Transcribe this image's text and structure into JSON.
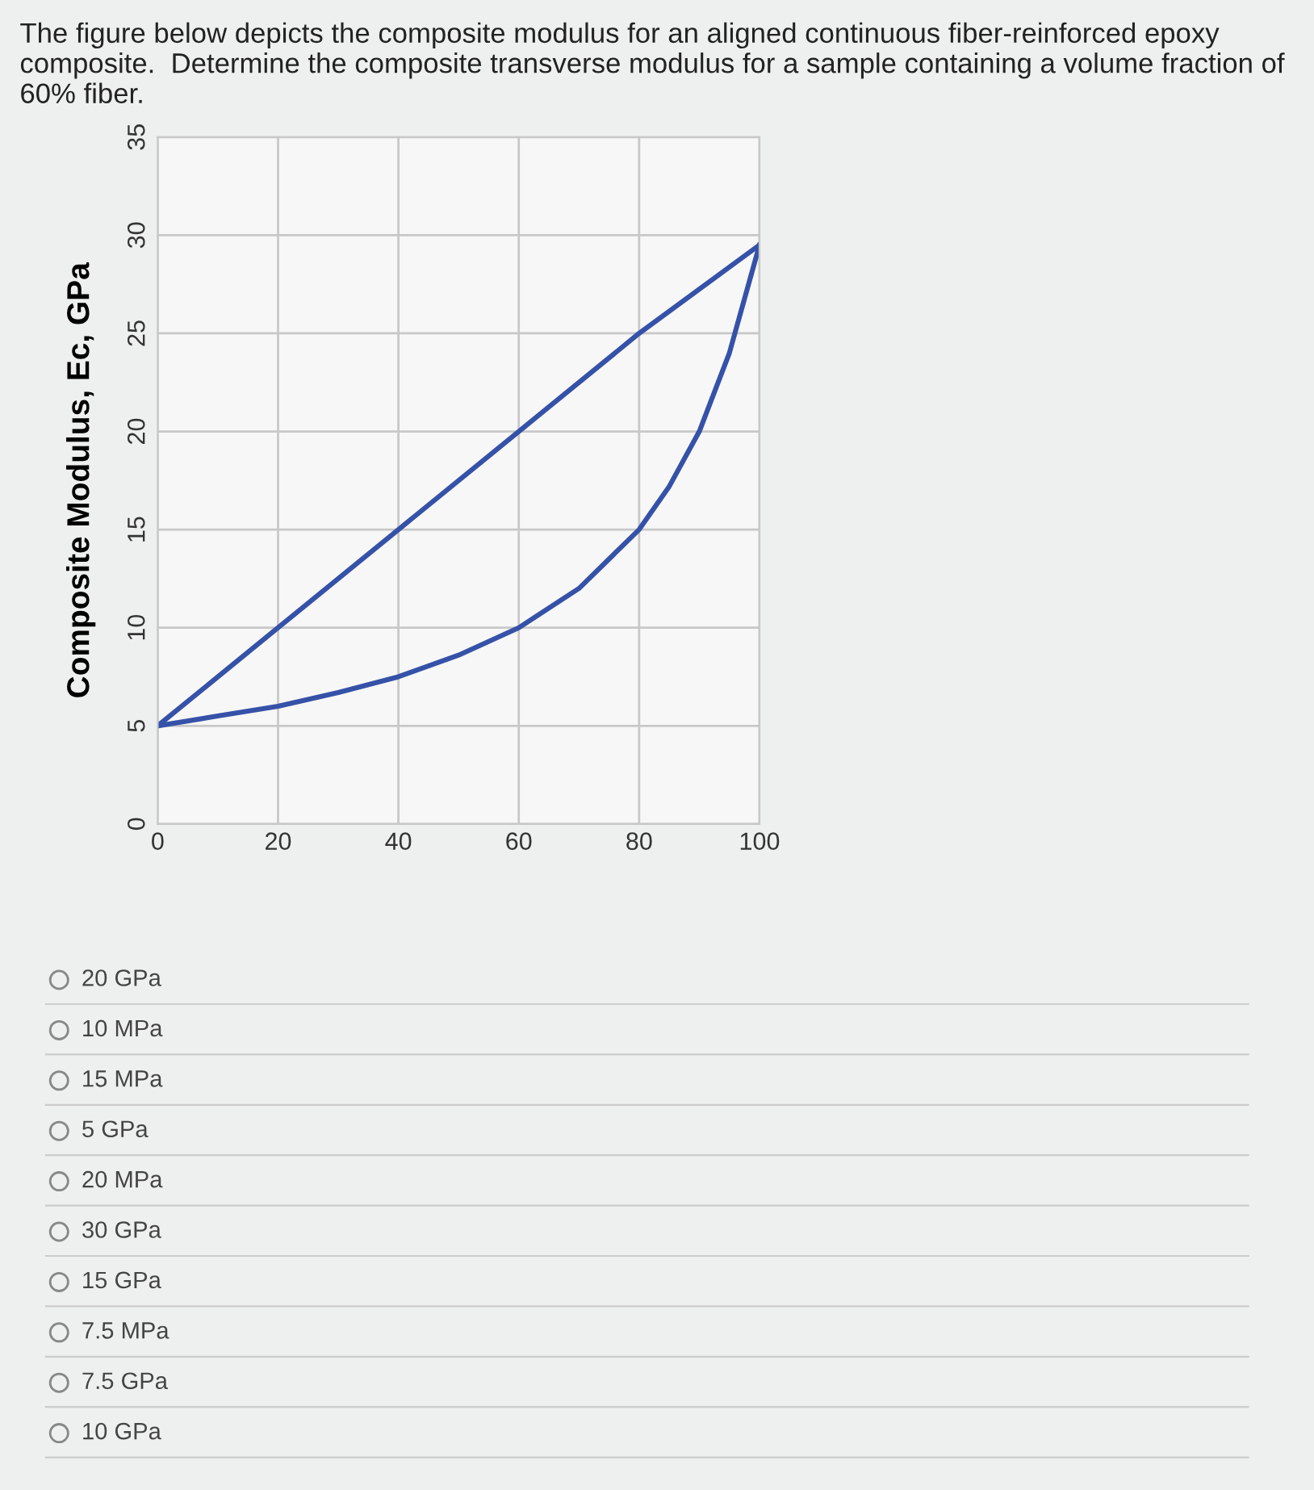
{
  "chart_data": {
    "type": "line",
    "title": "The figure below depicts the composite modulus for an aligned continuous fiber-reinforced epoxy composite.  Determine the composite transverse modulus for a sample containing a volume fraction of 60% fiber.",
    "ylabel": "Composite Modulus, Ec, GPa",
    "xlim": [
      0,
      100
    ],
    "xticks": [
      0,
      20,
      40,
      60,
      80,
      100
    ],
    "ylim": [
      0,
      35
    ],
    "yticks": [
      0,
      5,
      10,
      15,
      20,
      25,
      30,
      35
    ],
    "grid": true,
    "legend": false,
    "marker": "none",
    "line_style": "solid",
    "series": [
      {
        "color": "#3552a8",
        "x": [
          0,
          20,
          40,
          60,
          80,
          100
        ],
        "values": [
          5,
          10,
          15,
          20,
          25,
          29.5
        ]
      },
      {
        "color": "#3552a8",
        "x": [
          0,
          10,
          20,
          30,
          40,
          50,
          60,
          70,
          80,
          85,
          90,
          95,
          100
        ],
        "values": [
          5,
          5.5,
          6,
          6.7,
          7.5,
          8.6,
          10,
          12,
          15,
          17.2,
          20,
          24,
          29.5
        ]
      }
    ],
    "annotations": [
      "20 GPa",
      "10 MPa",
      "15 MPa",
      "5 GPa",
      "20 MPa",
      "30 GPa",
      "15 GPa",
      "7.5 MPa",
      "7.5 GPa",
      "10 GPa"
    ]
  }
}
